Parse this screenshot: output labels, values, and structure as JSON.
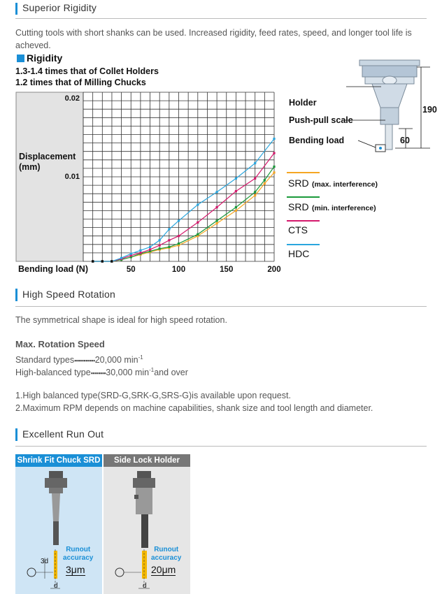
{
  "sections": {
    "rigidity": {
      "title": "Superior Rigidity",
      "desc": "Cutting tools with short shanks can be used. Increased rigidity, feed rates, speed, and longer tool life is acheved.",
      "subhead": "Rigidity",
      "line1": "1.3-1.4 times that of Collet Holders",
      "line2": "1.2 times that of Milling Chucks"
    },
    "speed": {
      "title": "High Speed Rotation",
      "desc": "The symmetrical shape is ideal for high speed rotation.",
      "max_title": "Max. Rotation Speed",
      "std_label": "Standard types",
      "std_value": "20,000 min",
      "hb_label": "High-balanced type",
      "hb_value": "30,000 min",
      "hb_suffix": "and over",
      "exp": "-1",
      "note1": "1.High balanced type(SRD-G,SRK-G,SRS-G)is available upon request.",
      "note2": "2.Maximum RPM depends on machine capabilities, shank size and tool length and diameter."
    },
    "runout": {
      "title": "Excellent Run Out",
      "card1_title": "Shrink Fit Chuck SRD",
      "card2_title": "Side Lock Holder",
      "runout_label1": "Runout",
      "runout_label2": "accuracy",
      "card1_value": "3μm",
      "card2_value": "20μm",
      "d_label": "d",
      "threed_label": "3d"
    }
  },
  "diagram": {
    "holder": "Holder",
    "push_pull": "Push-pull scale",
    "bending": "Bending load",
    "dim190": "190",
    "dim60": "60"
  },
  "chart_data": {
    "type": "line",
    "title": "",
    "xlabel": "Bending load (N)",
    "ylabel": "Displacement (mm)",
    "xlim": [
      0,
      200
    ],
    "ylim": [
      0,
      0.02
    ],
    "x_ticks": [
      "50",
      "100",
      "150",
      "200"
    ],
    "y_ticks": [
      "0.02",
      "0.01"
    ],
    "grid": true,
    "legend_position": "right",
    "series": [
      {
        "name": "SRD",
        "note": "(max. interference)",
        "color": "#f5a623",
        "x": [
          10,
          20,
          30,
          40,
          50,
          60,
          70,
          80,
          90,
          100,
          120,
          140,
          160,
          180,
          190,
          200
        ],
        "y": [
          0,
          0,
          0,
          0.0002,
          0.0005,
          0.0008,
          0.0011,
          0.0014,
          0.0016,
          0.0019,
          0.003,
          0.0045,
          0.006,
          0.0078,
          0.0092,
          0.0105
        ]
      },
      {
        "name": "SRD",
        "note": "(min. interference)",
        "color": "#1a9a3a",
        "x": [
          10,
          20,
          30,
          40,
          50,
          60,
          70,
          80,
          90,
          100,
          120,
          140,
          160,
          180,
          190,
          200
        ],
        "y": [
          0,
          0,
          0,
          0.0002,
          0.0005,
          0.0009,
          0.0012,
          0.0015,
          0.0017,
          0.0021,
          0.0032,
          0.0048,
          0.0064,
          0.0082,
          0.0096,
          0.0112
        ]
      },
      {
        "name": "CTS",
        "color": "#d4196c",
        "x": [
          10,
          20,
          30,
          40,
          50,
          60,
          70,
          80,
          90,
          100,
          120,
          140,
          160,
          180,
          200
        ],
        "y": [
          0,
          0,
          0,
          0.0003,
          0.0007,
          0.001,
          0.0014,
          0.0019,
          0.0025,
          0.003,
          0.0046,
          0.0064,
          0.0083,
          0.0098,
          0.0128
        ]
      },
      {
        "name": "HDC",
        "color": "#2aa6de",
        "x": [
          10,
          20,
          30,
          40,
          50,
          60,
          70,
          80,
          90,
          100,
          120,
          140,
          160,
          180,
          200
        ],
        "y": [
          0,
          0,
          0,
          0.0004,
          0.0009,
          0.0013,
          0.0017,
          0.0025,
          0.0038,
          0.0048,
          0.0067,
          0.0082,
          0.0098,
          0.0116,
          0.0145
        ]
      }
    ]
  }
}
